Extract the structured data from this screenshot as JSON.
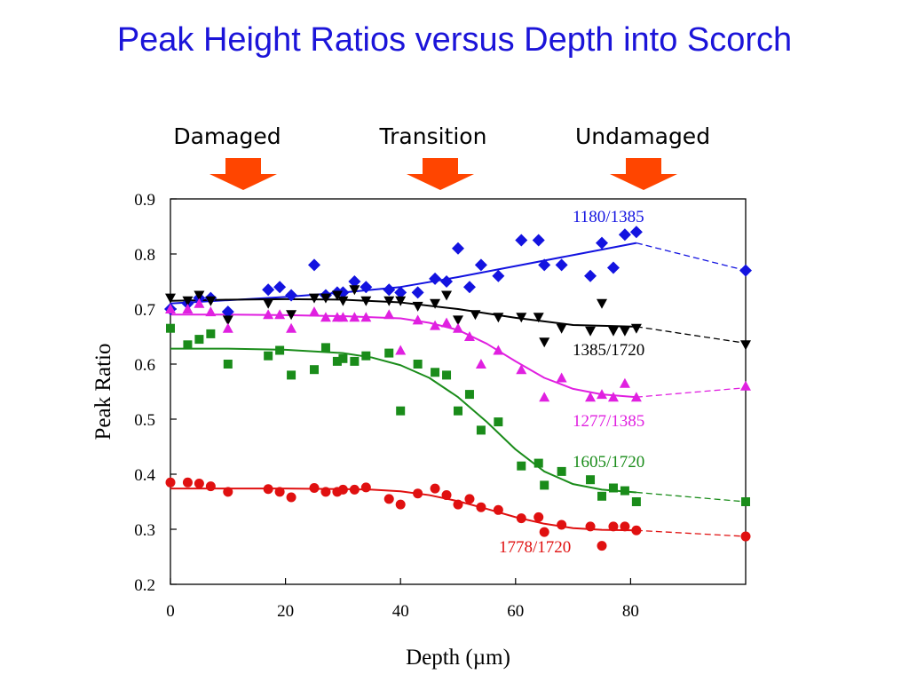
{
  "title": "Peak Height Ratios versus Depth into Scorch",
  "zones": [
    {
      "label": "Damaged",
      "arrow_color": "#ff4500",
      "x": 10
    },
    {
      "label": "Transition",
      "arrow_color": "#ff4500",
      "x": 45
    },
    {
      "label": "Undamaged",
      "arrow_color": "#ff4500",
      "x": 82
    }
  ],
  "chart_data": {
    "type": "scatter",
    "xlabel": "Depth (µm)",
    "ylabel": "Peak Ratio",
    "xlim": [
      0,
      100
    ],
    "ylim": [
      0.2,
      0.9
    ],
    "xticks": [
      0,
      20,
      40,
      60,
      80
    ],
    "yticks": [
      0.2,
      0.3,
      0.4,
      0.5,
      0.6,
      0.7,
      0.8,
      0.9
    ],
    "grid": false,
    "series": [
      {
        "name": "1180/1385",
        "color": "#1313e0",
        "marker": "diamond",
        "x": [
          0,
          3,
          5,
          7,
          10,
          17,
          19,
          21,
          25,
          27,
          29,
          30,
          32,
          34,
          38,
          40,
          43,
          46,
          48,
          50,
          52,
          54,
          57,
          61,
          64,
          65,
          68,
          73,
          75,
          77,
          79,
          81,
          100
        ],
        "y": [
          0.7,
          0.71,
          0.72,
          0.72,
          0.695,
          0.735,
          0.74,
          0.725,
          0.78,
          0.725,
          0.73,
          0.73,
          0.75,
          0.74,
          0.735,
          0.73,
          0.73,
          0.755,
          0.75,
          0.81,
          0.74,
          0.78,
          0.76,
          0.825,
          0.825,
          0.78,
          0.78,
          0.76,
          0.82,
          0.775,
          0.835,
          0.84,
          0.77
        ],
        "fit_x": [
          0,
          10,
          20,
          30,
          40,
          50,
          60,
          70,
          81
        ],
        "fit_y": [
          0.71,
          0.716,
          0.722,
          0.73,
          0.74,
          0.758,
          0.778,
          0.798,
          0.82
        ],
        "extrap_x": [
          81,
          100
        ],
        "extrap_y": [
          0.82,
          0.77
        ]
      },
      {
        "name": "1385/1720",
        "color": "#000000",
        "marker": "triangle-down",
        "x": [
          0,
          3,
          5,
          7,
          10,
          17,
          21,
          25,
          27,
          29,
          30,
          32,
          34,
          38,
          40,
          43,
          46,
          48,
          50,
          53,
          57,
          61,
          64,
          65,
          68,
          73,
          75,
          77,
          79,
          81,
          100
        ],
        "y": [
          0.72,
          0.715,
          0.725,
          0.715,
          0.68,
          0.71,
          0.69,
          0.72,
          0.72,
          0.725,
          0.715,
          0.735,
          0.715,
          0.715,
          0.715,
          0.705,
          0.71,
          0.725,
          0.68,
          0.69,
          0.685,
          0.685,
          0.685,
          0.64,
          0.665,
          0.66,
          0.71,
          0.66,
          0.66,
          0.665,
          0.635
        ],
        "fit_x": [
          0,
          10,
          20,
          30,
          40,
          50,
          60,
          70,
          81
        ],
        "fit_y": [
          0.715,
          0.717,
          0.718,
          0.717,
          0.712,
          0.7,
          0.684,
          0.671,
          0.668
        ],
        "extrap_x": [
          81,
          100
        ],
        "extrap_y": [
          0.668,
          0.638
        ]
      },
      {
        "name": "1277/1385",
        "color": "#e020e0",
        "marker": "triangle-up",
        "x": [
          0,
          3,
          5,
          7,
          10,
          17,
          19,
          21,
          25,
          27,
          29,
          30,
          32,
          34,
          38,
          40,
          43,
          46,
          48,
          50,
          52,
          54,
          57,
          61,
          65,
          68,
          73,
          75,
          77,
          79,
          81,
          100
        ],
        "y": [
          0.7,
          0.7,
          0.71,
          0.695,
          0.665,
          0.69,
          0.69,
          0.665,
          0.695,
          0.685,
          0.685,
          0.685,
          0.685,
          0.685,
          0.69,
          0.625,
          0.68,
          0.67,
          0.675,
          0.665,
          0.65,
          0.6,
          0.625,
          0.59,
          0.54,
          0.575,
          0.54,
          0.545,
          0.54,
          0.565,
          0.54,
          0.56
        ],
        "fit_x": [
          0,
          10,
          20,
          30,
          40,
          45,
          50,
          55,
          60,
          65,
          70,
          75,
          81
        ],
        "fit_y": [
          0.69,
          0.69,
          0.689,
          0.687,
          0.683,
          0.675,
          0.662,
          0.637,
          0.605,
          0.575,
          0.555,
          0.545,
          0.54
        ],
        "extrap_x": [
          81,
          100
        ],
        "extrap_y": [
          0.54,
          0.557
        ]
      },
      {
        "name": "1605/1720",
        "color": "#1a8c1a",
        "marker": "square",
        "x": [
          0,
          3,
          5,
          7,
          10,
          17,
          19,
          21,
          25,
          27,
          29,
          30,
          32,
          34,
          38,
          40,
          43,
          46,
          48,
          50,
          52,
          54,
          57,
          61,
          64,
          65,
          68,
          73,
          75,
          77,
          79,
          81,
          100
        ],
        "y": [
          0.665,
          0.635,
          0.645,
          0.655,
          0.6,
          0.615,
          0.625,
          0.58,
          0.59,
          0.63,
          0.605,
          0.61,
          0.605,
          0.615,
          0.62,
          0.515,
          0.6,
          0.585,
          0.58,
          0.515,
          0.545,
          0.48,
          0.495,
          0.415,
          0.42,
          0.38,
          0.405,
          0.39,
          0.36,
          0.375,
          0.37,
          0.35,
          0.35
        ],
        "fit_x": [
          0,
          10,
          20,
          30,
          35,
          40,
          45,
          50,
          55,
          60,
          65,
          70,
          75,
          81
        ],
        "fit_y": [
          0.628,
          0.628,
          0.626,
          0.62,
          0.612,
          0.598,
          0.575,
          0.54,
          0.495,
          0.445,
          0.405,
          0.382,
          0.372,
          0.367
        ],
        "extrap_x": [
          81,
          100
        ],
        "extrap_y": [
          0.367,
          0.35
        ]
      },
      {
        "name": "1778/1720",
        "color": "#e01010",
        "marker": "circle",
        "x": [
          0,
          3,
          5,
          7,
          10,
          17,
          19,
          21,
          25,
          27,
          29,
          30,
          32,
          34,
          38,
          40,
          43,
          46,
          48,
          50,
          52,
          54,
          57,
          61,
          64,
          65,
          68,
          73,
          75,
          77,
          79,
          81,
          100
        ],
        "y": [
          0.385,
          0.385,
          0.383,
          0.378,
          0.368,
          0.373,
          0.368,
          0.358,
          0.375,
          0.368,
          0.368,
          0.372,
          0.372,
          0.376,
          0.355,
          0.345,
          0.365,
          0.374,
          0.362,
          0.345,
          0.355,
          0.34,
          0.335,
          0.32,
          0.322,
          0.295,
          0.308,
          0.305,
          0.27,
          0.305,
          0.305,
          0.298,
          0.287
        ],
        "fit_x": [
          0,
          10,
          20,
          30,
          35,
          40,
          45,
          50,
          55,
          60,
          65,
          70,
          75,
          81
        ],
        "fit_y": [
          0.374,
          0.374,
          0.374,
          0.373,
          0.372,
          0.369,
          0.362,
          0.351,
          0.337,
          0.322,
          0.31,
          0.302,
          0.299,
          0.298
        ],
        "extrap_x": [
          81,
          100
        ],
        "extrap_y": [
          0.298,
          0.287
        ]
      }
    ]
  }
}
